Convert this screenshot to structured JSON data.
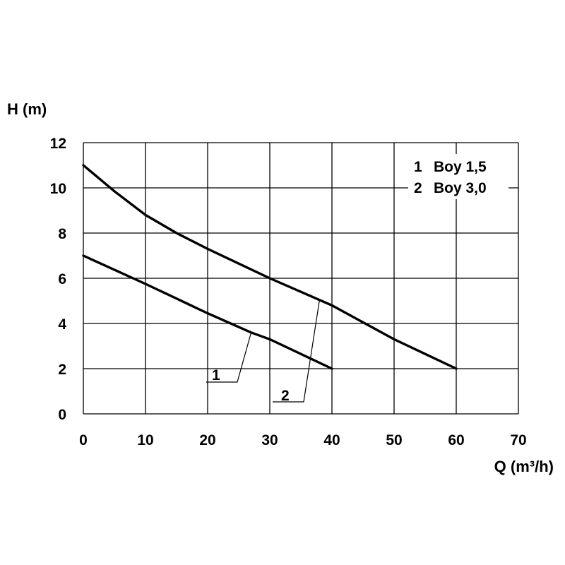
{
  "chart_data": {
    "type": "line",
    "ylabel": "H (m)",
    "xlabel": "Q (m³/h)",
    "xlim": [
      0,
      70
    ],
    "ylim": [
      0,
      12
    ],
    "x_ticks": [
      "0",
      "10",
      "20",
      "30",
      "40",
      "50",
      "60",
      "70"
    ],
    "y_ticks": [
      "0",
      "2",
      "4",
      "6",
      "8",
      "10",
      "12"
    ],
    "grid": true,
    "legend_position": "top-right",
    "legend": [
      {
        "num": "1",
        "name": "Boy 1,5"
      },
      {
        "num": "2",
        "name": "Boy 3,0"
      }
    ],
    "series": [
      {
        "name": "Boy 1,5",
        "label": "1",
        "x": [
          0,
          10,
          20,
          27,
          30,
          40
        ],
        "y": [
          7.0,
          5.75,
          4.45,
          3.6,
          3.3,
          2.0
        ]
      },
      {
        "name": "Boy 3,0",
        "label": "2",
        "x": [
          0,
          5,
          10,
          15,
          20,
          25,
          30,
          35,
          40,
          45,
          50,
          55,
          60
        ],
        "y": [
          11.0,
          9.85,
          8.8,
          8.0,
          7.3,
          6.65,
          6.0,
          5.4,
          4.8,
          4.05,
          3.3,
          2.65,
          2.0
        ]
      }
    ]
  },
  "colors": {
    "line": "#000000",
    "background": "#ffffff"
  }
}
